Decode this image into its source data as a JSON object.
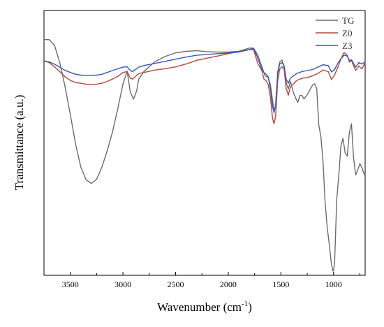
{
  "chart_data": {
    "type": "line",
    "xlabel": "Wavenumber (cm",
    "xlabel_sup": "-1",
    "xlabel_close": ")",
    "ylabel": "Transmittance (a.u.)",
    "xlim": [
      3750,
      700
    ],
    "x_reversed": true,
    "ylim": [
      0,
      100
    ],
    "x_ticks": [
      3500,
      3000,
      2500,
      2000,
      1500,
      1000
    ],
    "y_tick_labels": false,
    "grid": false,
    "legend_position": "top-right",
    "series": [
      {
        "name": "TG",
        "color": "#6b6b6b",
        "points": [
          [
            3750,
            89.0
          ],
          [
            3700,
            89.0
          ],
          [
            3650,
            86.8
          ],
          [
            3600,
            80.3
          ],
          [
            3550,
            71.2
          ],
          [
            3500,
            60.7
          ],
          [
            3450,
            49.6
          ],
          [
            3400,
            40.8
          ],
          [
            3350,
            36.1
          ],
          [
            3300,
            34.7
          ],
          [
            3250,
            36.3
          ],
          [
            3200,
            40.9
          ],
          [
            3150,
            47.0
          ],
          [
            3100,
            54.0
          ],
          [
            3050,
            62.8
          ],
          [
            3000,
            72.2
          ],
          [
            2960,
            77.1
          ],
          [
            2930,
            69.1
          ],
          [
            2900,
            66.5
          ],
          [
            2870,
            69.6
          ],
          [
            2850,
            74.1
          ],
          [
            2800,
            77.0
          ],
          [
            2700,
            80.6
          ],
          [
            2600,
            82.6
          ],
          [
            2500,
            84.0
          ],
          [
            2400,
            84.6
          ],
          [
            2300,
            84.8
          ],
          [
            2200,
            84.4
          ],
          [
            2100,
            84.3
          ],
          [
            2000,
            84.3
          ],
          [
            1900,
            84.6
          ],
          [
            1800,
            85.8
          ],
          [
            1760,
            85.8
          ],
          [
            1720,
            83.2
          ],
          [
            1680,
            78.7
          ],
          [
            1650,
            75.3
          ],
          [
            1620,
            74.7
          ],
          [
            1600,
            72.0
          ],
          [
            1580,
            66.2
          ],
          [
            1565,
            62.3
          ],
          [
            1550,
            63.7
          ],
          [
            1530,
            76.9
          ],
          [
            1510,
            80.6
          ],
          [
            1490,
            81.3
          ],
          [
            1470,
            78.7
          ],
          [
            1450,
            72.8
          ],
          [
            1430,
            70.3
          ],
          [
            1410,
            73.2
          ],
          [
            1380,
            68.9
          ],
          [
            1360,
            66.9
          ],
          [
            1340,
            65.3
          ],
          [
            1320,
            67.9
          ],
          [
            1300,
            67.9
          ],
          [
            1280,
            66.6
          ],
          [
            1250,
            68.2
          ],
          [
            1220,
            70.4
          ],
          [
            1200,
            71.8
          ],
          [
            1180,
            72.3
          ],
          [
            1160,
            70.6
          ],
          [
            1140,
            56.8
          ],
          [
            1120,
            52.2
          ],
          [
            1100,
            42.8
          ],
          [
            1080,
            27.3
          ],
          [
            1060,
            18.0
          ],
          [
            1040,
            11.4
          ],
          [
            1020,
            4.2
          ],
          [
            1005,
            1.6
          ],
          [
            1000,
            1.9
          ],
          [
            990,
            5.1
          ],
          [
            970,
            28.6
          ],
          [
            950,
            37.9
          ],
          [
            930,
            48.9
          ],
          [
            910,
            51.7
          ],
          [
            890,
            46.2
          ],
          [
            870,
            45.0
          ],
          [
            850,
            54.0
          ],
          [
            830,
            57.2
          ],
          [
            810,
            44.4
          ],
          [
            790,
            37.9
          ],
          [
            770,
            39.8
          ],
          [
            750,
            42.2
          ],
          [
            730,
            40.5
          ],
          [
            710,
            38.2
          ],
          [
            700,
            37.9
          ]
        ]
      },
      {
        "name": "Z0",
        "color": "#b5473c",
        "points": [
          [
            3750,
            81.1
          ],
          [
            3700,
            80.3
          ],
          [
            3650,
            78.7
          ],
          [
            3600,
            76.9
          ],
          [
            3550,
            75.0
          ],
          [
            3500,
            73.6
          ],
          [
            3450,
            72.8
          ],
          [
            3400,
            72.5
          ],
          [
            3350,
            72.2
          ],
          [
            3300,
            72.0
          ],
          [
            3250,
            72.2
          ],
          [
            3200,
            72.5
          ],
          [
            3150,
            73.2
          ],
          [
            3100,
            74.1
          ],
          [
            3050,
            75.1
          ],
          [
            3000,
            76.6
          ],
          [
            2960,
            76.9
          ],
          [
            2930,
            74.4
          ],
          [
            2910,
            74.1
          ],
          [
            2880,
            75.1
          ],
          [
            2850,
            76.2
          ],
          [
            2800,
            76.6
          ],
          [
            2700,
            77.5
          ],
          [
            2600,
            78.0
          ],
          [
            2500,
            78.7
          ],
          [
            2400,
            79.8
          ],
          [
            2300,
            81.2
          ],
          [
            2200,
            82.0
          ],
          [
            2100,
            82.8
          ],
          [
            2000,
            83.7
          ],
          [
            1900,
            84.5
          ],
          [
            1800,
            85.2
          ],
          [
            1760,
            85.2
          ],
          [
            1720,
            80.0
          ],
          [
            1680,
            77.2
          ],
          [
            1660,
            74.0
          ],
          [
            1640,
            73.5
          ],
          [
            1620,
            72.0
          ],
          [
            1600,
            67.4
          ],
          [
            1580,
            59.4
          ],
          [
            1565,
            57.2
          ],
          [
            1550,
            60.1
          ],
          [
            1530,
            73.6
          ],
          [
            1510,
            78.0
          ],
          [
            1490,
            78.8
          ],
          [
            1470,
            77.9
          ],
          [
            1450,
            70.5
          ],
          [
            1430,
            68.0
          ],
          [
            1410,
            71.2
          ],
          [
            1380,
            72.3
          ],
          [
            1350,
            73.6
          ],
          [
            1300,
            74.4
          ],
          [
            1250,
            74.7
          ],
          [
            1200,
            75.3
          ],
          [
            1150,
            76.2
          ],
          [
            1100,
            77.5
          ],
          [
            1050,
            76.9
          ],
          [
            1020,
            73.9
          ],
          [
            990,
            75.7
          ],
          [
            960,
            78.5
          ],
          [
            930,
            81.7
          ],
          [
            900,
            84.1
          ],
          [
            870,
            83.1
          ],
          [
            850,
            80.5
          ],
          [
            830,
            81.1
          ],
          [
            810,
            79.2
          ],
          [
            790,
            77.3
          ],
          [
            760,
            79.0
          ],
          [
            730,
            78.0
          ],
          [
            700,
            80.3
          ]
        ]
      },
      {
        "name": "Z3",
        "color": "#3a55b5",
        "points": [
          [
            3750,
            80.8
          ],
          [
            3700,
            80.6
          ],
          [
            3650,
            79.7
          ],
          [
            3600,
            78.6
          ],
          [
            3550,
            77.4
          ],
          [
            3500,
            76.6
          ],
          [
            3450,
            75.9
          ],
          [
            3400,
            75.6
          ],
          [
            3350,
            75.5
          ],
          [
            3300,
            75.5
          ],
          [
            3250,
            75.6
          ],
          [
            3200,
            75.9
          ],
          [
            3150,
            76.6
          ],
          [
            3100,
            77.3
          ],
          [
            3050,
            78.0
          ],
          [
            3000,
            78.6
          ],
          [
            2960,
            78.7
          ],
          [
            2930,
            77.3
          ],
          [
            2910,
            76.9
          ],
          [
            2880,
            77.7
          ],
          [
            2850,
            78.6
          ],
          [
            2800,
            79.2
          ],
          [
            2700,
            80.0
          ],
          [
            2600,
            80.8
          ],
          [
            2500,
            81.6
          ],
          [
            2400,
            82.4
          ],
          [
            2300,
            83.1
          ],
          [
            2200,
            83.4
          ],
          [
            2100,
            83.7
          ],
          [
            2000,
            83.9
          ],
          [
            1900,
            84.3
          ],
          [
            1800,
            85.2
          ],
          [
            1760,
            85.7
          ],
          [
            1720,
            82.0
          ],
          [
            1680,
            77.7
          ],
          [
            1660,
            76.5
          ],
          [
            1640,
            75.9
          ],
          [
            1620,
            74.9
          ],
          [
            1600,
            70.4
          ],
          [
            1580,
            64.0
          ],
          [
            1565,
            61.4
          ],
          [
            1550,
            64.3
          ],
          [
            1530,
            76.5
          ],
          [
            1510,
            79.9
          ],
          [
            1490,
            80.3
          ],
          [
            1470,
            79.2
          ],
          [
            1450,
            74.1
          ],
          [
            1430,
            72.5
          ],
          [
            1410,
            74.4
          ],
          [
            1380,
            75.3
          ],
          [
            1350,
            76.2
          ],
          [
            1300,
            76.9
          ],
          [
            1250,
            77.3
          ],
          [
            1200,
            77.7
          ],
          [
            1150,
            78.6
          ],
          [
            1100,
            79.5
          ],
          [
            1050,
            79.2
          ],
          [
            1020,
            76.8
          ],
          [
            990,
            77.7
          ],
          [
            960,
            80.0
          ],
          [
            930,
            81.8
          ],
          [
            900,
            83.1
          ],
          [
            870,
            82.8
          ],
          [
            850,
            81.1
          ],
          [
            830,
            81.4
          ],
          [
            810,
            80.0
          ],
          [
            790,
            78.6
          ],
          [
            760,
            80.3
          ],
          [
            730,
            79.8
          ],
          [
            700,
            80.6
          ]
        ]
      }
    ]
  }
}
